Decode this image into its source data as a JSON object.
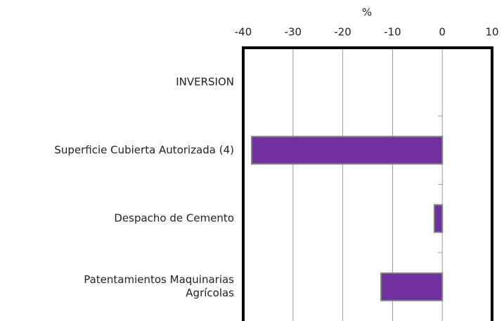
{
  "chart_data": {
    "type": "bar",
    "orientation": "horizontal",
    "xlabel": "%",
    "categories": [
      "INVERSION",
      "Superficie Cubierta Autorizada (4)",
      "Despacho de Cemento",
      "Patentamientos Maquinarias\nAgrícolas"
    ],
    "values": [
      null,
      -38.3,
      -1.6,
      -12.3
    ],
    "color": "#7030a0",
    "xlim": [
      -40,
      10
    ],
    "xticks": [
      -40,
      -30,
      -20,
      -10,
      0,
      10
    ],
    "grid": true
  }
}
